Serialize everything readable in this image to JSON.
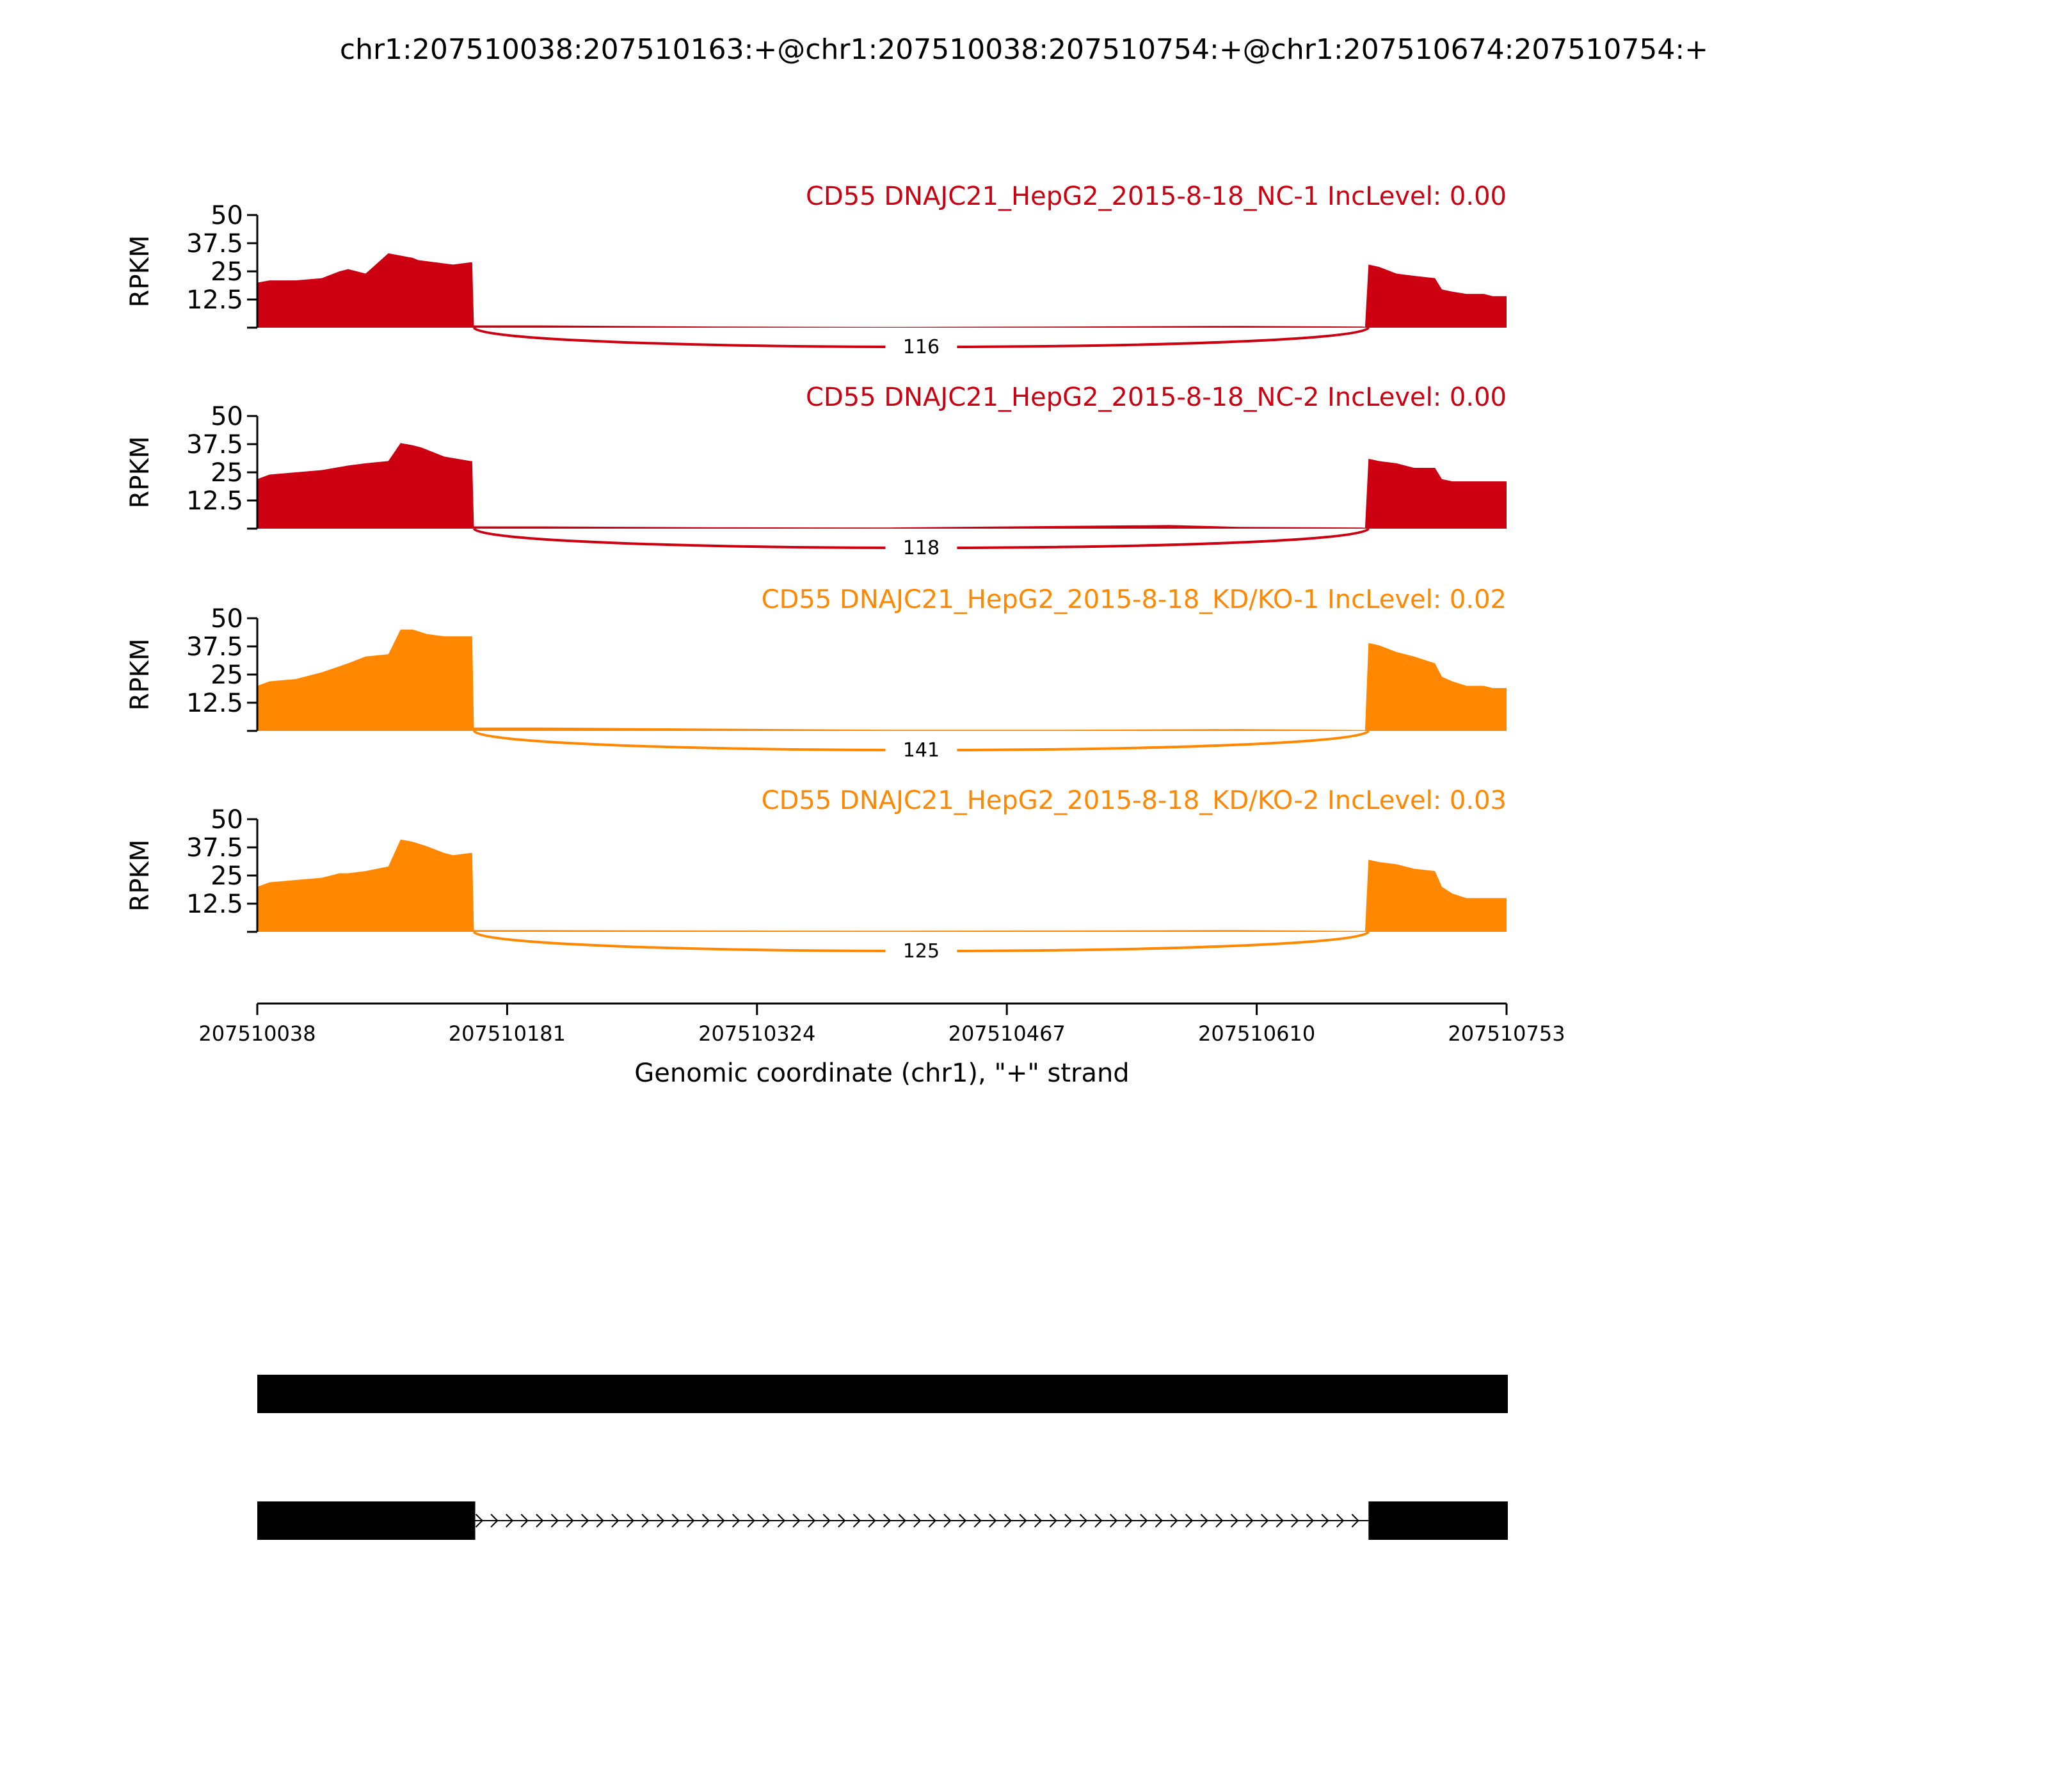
{
  "title": "chr1:207510038:207510163:+@chr1:207510038:207510754:+@chr1:207510674:207510754:+",
  "chart_data": {
    "type": "area",
    "ylabel": "RPKM",
    "ylim": [
      0,
      50
    ],
    "yticks": [
      12.5,
      25,
      37.5,
      50
    ],
    "ytick_labels": [
      "12.5",
      "25",
      "37.5",
      "50"
    ],
    "xlabel": "Genomic coordinate (chr1), \"+\" strand",
    "xlim": [
      207510038,
      207510753
    ],
    "xticks": [
      207510038,
      207510181,
      207510324,
      207510467,
      207510610,
      207510753
    ],
    "xtick_labels": [
      "207510038",
      "207510181",
      "207510324",
      "207510467",
      "207510610",
      "207510753"
    ],
    "series": [
      {
        "label": "CD55 DNAJC21_HepG2_2015-8-18_NC-1 IncLevel: 0.00",
        "color": "#cc0011",
        "junction_count": "116",
        "x": [
          207510038,
          207510045,
          207510060,
          207510075,
          207510085,
          207510090,
          207510100,
          207510113,
          207510120,
          207510127,
          207510130,
          207510150,
          207510160,
          207510161,
          207510162,
          207510200,
          207510300,
          207510400,
          207510500,
          207510600,
          207510670,
          207510672,
          207510674,
          207510680,
          207510690,
          207510700,
          207510712,
          207510716,
          207510722,
          207510730,
          207510740,
          207510745,
          207510753
        ],
        "y": [
          20,
          21,
          21,
          22,
          25,
          26,
          24,
          33,
          32,
          31,
          30,
          28,
          29,
          29,
          1,
          1,
          0.5,
          0.3,
          0.5,
          0.8,
          0.5,
          0.4,
          28,
          27,
          24,
          23,
          22,
          17,
          16,
          15,
          15,
          14,
          14
        ]
      },
      {
        "label": "CD55 DNAJC21_HepG2_2015-8-18_NC-2 IncLevel: 0.00",
        "color": "#cc0011",
        "junction_count": "118",
        "x": [
          207510038,
          207510045,
          207510060,
          207510075,
          207510090,
          207510100,
          207510113,
          207510120,
          207510127,
          207510132,
          207510145,
          207510160,
          207510161,
          207510162,
          207510200,
          207510300,
          207510400,
          207510500,
          207510560,
          207510600,
          207510670,
          207510672,
          207510674,
          207510680,
          207510690,
          207510700,
          207510712,
          207510716,
          207510722,
          207510730,
          207510740,
          207510745,
          207510753
        ],
        "y": [
          22,
          24,
          25,
          26,
          28,
          29,
          30,
          38,
          37,
          36,
          32,
          30,
          30,
          1,
          1,
          0.6,
          0.5,
          1.2,
          1.6,
          0.8,
          0.5,
          0.4,
          31,
          30,
          29,
          27,
          27,
          22,
          21,
          21,
          21,
          21,
          21
        ]
      },
      {
        "label": "CD55 DNAJC21_HepG2_2015-8-18_KD/KO-1 IncLevel: 0.02",
        "color": "#ff8800",
        "junction_count": "141",
        "x": [
          207510038,
          207510045,
          207510060,
          207510075,
          207510090,
          207510100,
          207510113,
          207510120,
          207510127,
          207510135,
          207510145,
          207510160,
          207510161,
          207510162,
          207510200,
          207510300,
          207510400,
          207510500,
          207510600,
          207510670,
          207510672,
          207510674,
          207510680,
          207510690,
          207510700,
          207510712,
          207510716,
          207510722,
          207510730,
          207510740,
          207510745,
          207510753
        ],
        "y": [
          20,
          22,
          23,
          26,
          30,
          33,
          34,
          45,
          45,
          43,
          42,
          42,
          42,
          1.5,
          1.5,
          1,
          0.5,
          0.5,
          0.8,
          0.4,
          0.4,
          39,
          38,
          35,
          33,
          30,
          24,
          22,
          20,
          20,
          19,
          19
        ]
      },
      {
        "label": "CD55 DNAJC21_HepG2_2015-8-18_KD/KO-2 IncLevel: 0.03",
        "color": "#ff8800",
        "junction_count": "125",
        "x": [
          207510038,
          207510045,
          207510060,
          207510075,
          207510085,
          207510090,
          207510100,
          207510113,
          207510120,
          207510127,
          207510135,
          207510145,
          207510150,
          207510160,
          207510161,
          207510162,
          207510200,
          207510300,
          207510400,
          207510500,
          207510600,
          207510670,
          207510672,
          207510674,
          207510680,
          207510690,
          207510700,
          207510712,
          207510716,
          207510722,
          207510730,
          207510740,
          207510745,
          207510753
        ],
        "y": [
          20,
          22,
          23,
          24,
          26,
          26,
          27,
          29,
          41,
          40,
          38,
          35,
          34,
          35,
          35,
          0.8,
          0.8,
          0.6,
          0.5,
          0.6,
          0.8,
          0.4,
          0.4,
          32,
          31,
          30,
          28,
          27,
          20,
          17,
          15,
          15,
          15,
          15
        ]
      }
    ],
    "junction": {
      "start": 207510162,
      "end": 207510674
    },
    "gene_models": [
      {
        "exons": [
          [
            207510038,
            207510753
          ]
        ],
        "intron_arrows": false
      },
      {
        "exons": [
          [
            207510038,
            207510162
          ],
          [
            207510674,
            207510753
          ]
        ],
        "intron_arrows": true
      }
    ]
  }
}
